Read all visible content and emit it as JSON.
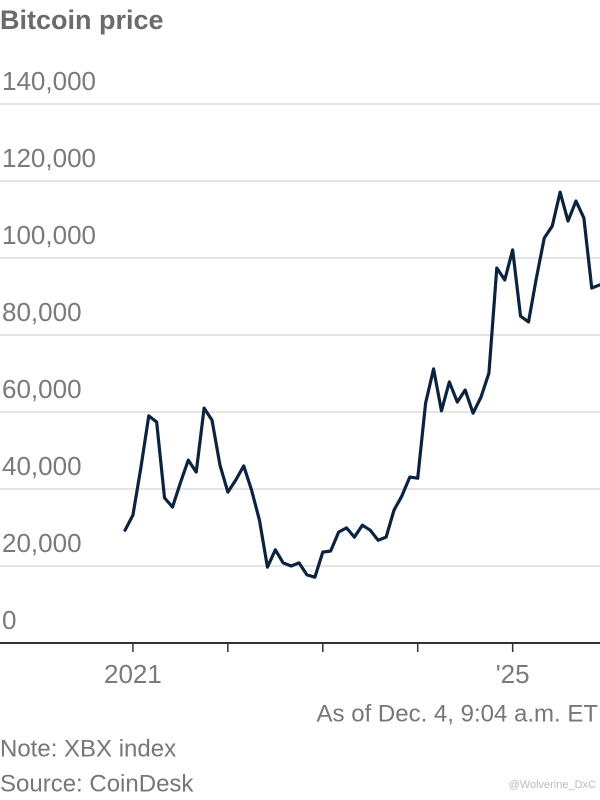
{
  "chart_data": {
    "type": "line",
    "title": "Bitcoin price",
    "note": "Note: XBX index",
    "source": "Source: CoinDesk",
    "annotation": "As of Dec. 4, 9:04 a.m. ET",
    "watermark": "@Wolverine_DxC",
    "color": "#0c2340",
    "grid": true,
    "x": [
      2020.917,
      2021.0,
      2021.083,
      2021.167,
      2021.25,
      2021.333,
      2021.417,
      2021.5,
      2021.583,
      2021.667,
      2021.75,
      2021.833,
      2021.917,
      2022.0,
      2022.083,
      2022.167,
      2022.25,
      2022.333,
      2022.417,
      2022.5,
      2022.583,
      2022.667,
      2022.75,
      2022.833,
      2022.917,
      2023.0,
      2023.083,
      2023.167,
      2023.25,
      2023.333,
      2023.417,
      2023.5,
      2023.583,
      2023.667,
      2023.75,
      2023.833,
      2023.917,
      2024.0,
      2024.083,
      2024.167,
      2024.25,
      2024.333,
      2024.417,
      2024.5,
      2024.583,
      2024.667,
      2024.75,
      2024.833,
      2024.917,
      2025.0,
      2025.083,
      2025.167,
      2025.25,
      2025.333,
      2025.417,
      2025.5,
      2025.583,
      2025.667,
      2025.75,
      2025.833,
      2025.917
    ],
    "values": [
      29300,
      33200,
      45400,
      59000,
      57400,
      37700,
      35300,
      41600,
      47500,
      44400,
      61000,
      57900,
      46200,
      39200,
      42300,
      46000,
      39700,
      31900,
      19700,
      24200,
      20800,
      20000,
      20800,
      17700,
      17100,
      23600,
      23900,
      28800,
      29900,
      27500,
      30600,
      29300,
      26700,
      27500,
      34500,
      38200,
      43100,
      42800,
      62300,
      71200,
      60300,
      67800,
      62600,
      65700,
      59700,
      63900,
      70100,
      97400,
      94300,
      102100,
      84900,
      83400,
      94800,
      105200,
      108300,
      117100,
      109600,
      114800,
      110400,
      92200,
      93000
    ],
    "xlim": [
      2019.6,
      2025.92
    ],
    "xticks": [
      2021,
      {
        "value": 2022,
        "label": null
      },
      {
        "value": 2023,
        "label": null
      },
      {
        "value": 2024,
        "label": null
      },
      {
        "value": 2025,
        "label": "'25"
      }
    ],
    "ylim": [
      0,
      140000
    ],
    "yticks": [
      {
        "value": 0,
        "label": "0"
      },
      {
        "value": 20000,
        "label": "20,000"
      },
      {
        "value": 40000,
        "label": "40,000"
      },
      {
        "value": 60000,
        "label": "60,000"
      },
      {
        "value": 80000,
        "label": "80,000"
      },
      {
        "value": 100000,
        "label": "100,000"
      },
      {
        "value": 120000,
        "label": "120,000"
      },
      {
        "value": 140000,
        "label": "140,000"
      }
    ]
  }
}
